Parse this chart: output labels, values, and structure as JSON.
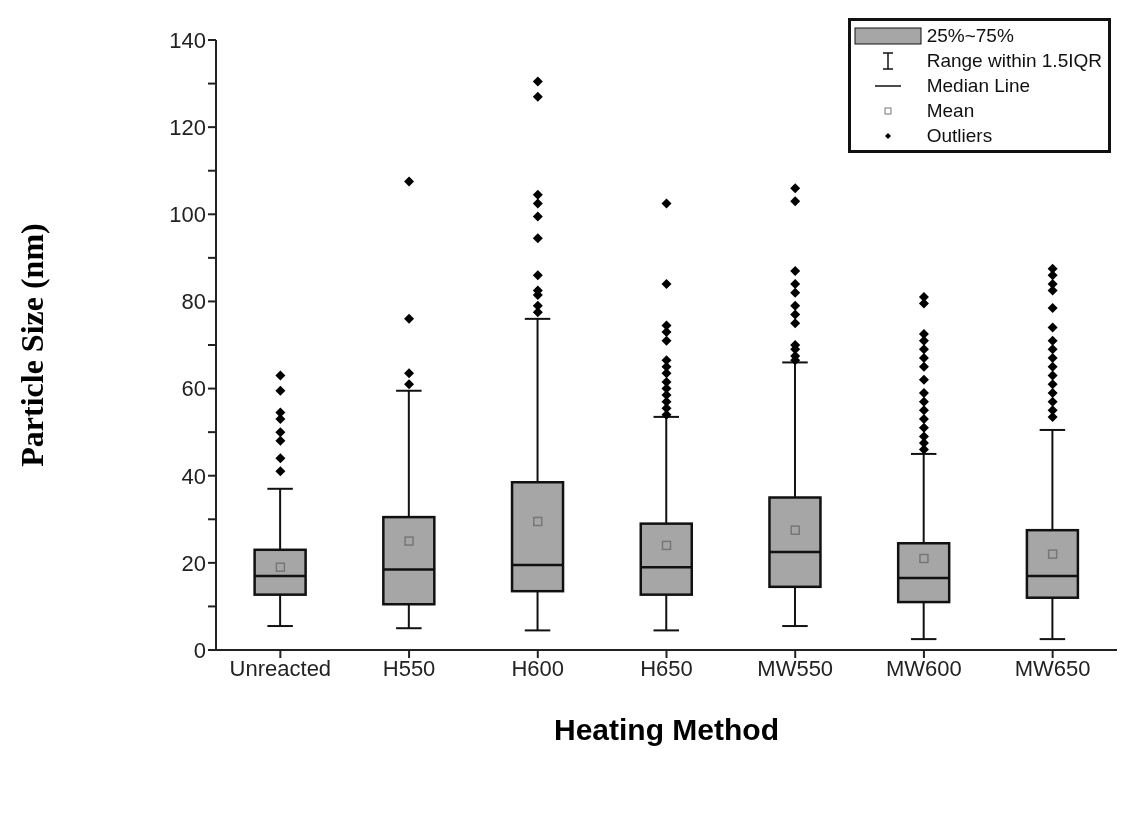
{
  "chart_data": {
    "type": "box",
    "xlabel": "Heating Method",
    "ylabel": "Particle Size (nm)",
    "categories": [
      "Unreacted",
      "H550",
      "H600",
      "H650",
      "MW550",
      "MW600",
      "MW650"
    ],
    "series": [
      {
        "type": "box",
        "color": "#a6a6a6",
        "boxes": [
          {
            "low": 5.5,
            "q1": 12.7,
            "median": 17,
            "q3": 23,
            "high": 37,
            "mean": 19,
            "outliers": [
              63,
              59.5,
              54.5,
              53,
              50,
              48,
              44,
              41
            ]
          },
          {
            "low": 5,
            "q1": 10.5,
            "median": 18.5,
            "q3": 30.5,
            "high": 59.5,
            "mean": 25,
            "outliers": [
              107.5,
              76,
              63.5,
              61
            ]
          },
          {
            "low": 4.5,
            "q1": 13.5,
            "median": 19.5,
            "q3": 38.5,
            "high": 76,
            "mean": 29.5,
            "outliers": [
              130.5,
              127,
              104.5,
              102.5,
              99.5,
              94.5,
              86,
              82.5,
              81.5,
              79,
              77.5
            ]
          },
          {
            "low": 4.5,
            "q1": 12.7,
            "median": 19,
            "q3": 29,
            "high": 53.5,
            "mean": 24,
            "outliers": [
              102.5,
              84,
              74.5,
              73,
              71,
              66.5,
              65,
              63.5,
              61.5,
              60,
              58.5,
              57,
              55.5,
              54
            ]
          },
          {
            "low": 5.5,
            "q1": 14.5,
            "median": 22.5,
            "q3": 35,
            "high": 66,
            "mean": 27.5,
            "outliers": [
              106,
              103,
              87,
              84,
              82,
              79,
              77,
              75,
              70,
              69,
              67.5,
              66.5
            ]
          },
          {
            "low": 2.5,
            "q1": 11,
            "median": 16.5,
            "q3": 24.5,
            "high": 45,
            "mean": 21,
            "outliers": [
              81,
              79.5,
              72.5,
              71,
              69,
              67,
              65,
              62,
              59,
              57,
              55,
              53,
              51,
              49,
              47.5,
              46
            ]
          },
          {
            "low": 2.5,
            "q1": 12,
            "median": 17,
            "q3": 27.5,
            "high": 50.5,
            "mean": 22,
            "outliers": [
              87.5,
              86,
              84,
              82.5,
              78.5,
              74,
              71,
              69,
              67,
              65,
              63,
              61,
              59,
              57,
              55,
              53.5
            ]
          }
        ]
      }
    ],
    "ylim": [
      0,
      140
    ],
    "yticks": [
      0,
      {
        "value": 10,
        "label": null
      },
      20,
      {
        "value": 30,
        "label": null
      },
      40,
      {
        "value": 50,
        "label": null
      },
      60,
      {
        "value": 70,
        "label": null
      },
      80,
      {
        "value": 90,
        "label": null
      },
      100,
      {
        "value": 110,
        "label": null
      },
      120,
      {
        "value": 130,
        "label": null
      },
      140
    ],
    "annotations": [
      "25%~75%",
      "Range within 1.5IQR",
      "Median Line",
      "Mean",
      "Outliers"
    ]
  }
}
